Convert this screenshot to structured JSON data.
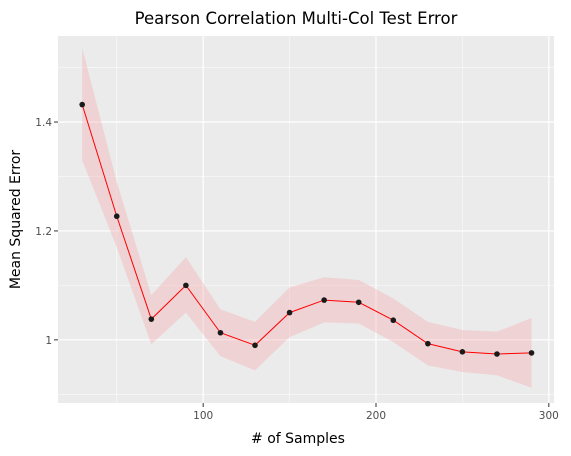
{
  "chart_data": {
    "type": "line",
    "title": "Pearson Correlation Multi-Col Test Error",
    "xlabel": "# of Samples",
    "ylabel": "Mean Squared Error",
    "xlim": [
      16,
      303
    ],
    "ylim": [
      0.884,
      1.558
    ],
    "x_ticks": [
      100,
      200,
      300
    ],
    "y_ticks": [
      1.0,
      1.2,
      1.4
    ],
    "x_tick_labels": [
      "100",
      "200",
      "300"
    ],
    "y_tick_labels": [
      "1",
      "1.2",
      "1.4"
    ],
    "grid": true,
    "legend": "none",
    "series": [
      {
        "x": [
          30,
          50,
          70,
          90,
          110,
          130,
          150,
          170,
          190,
          210,
          230,
          250,
          270,
          290
        ],
        "y": [
          1.432,
          1.227,
          1.038,
          1.1,
          1.013,
          0.99,
          1.05,
          1.073,
          1.069,
          1.036,
          0.993,
          0.978,
          0.974,
          0.976
        ],
        "lower": [
          1.33,
          1.17,
          0.992,
          1.05,
          0.97,
          0.944,
          1.005,
          1.032,
          1.03,
          0.996,
          0.953,
          0.941,
          0.935,
          0.912
        ],
        "upper": [
          1.536,
          1.29,
          1.082,
          1.152,
          1.056,
          1.033,
          1.096,
          1.115,
          1.11,
          1.076,
          1.033,
          1.018,
          1.015,
          1.04
        ]
      }
    ],
    "colors": {
      "panel": "#ebebeb",
      "grid_major": "#ffffff",
      "line": "#ff0000",
      "ribbon": "#f4a3a8",
      "points": "#1a1a1a",
      "tick": "#333333"
    }
  }
}
